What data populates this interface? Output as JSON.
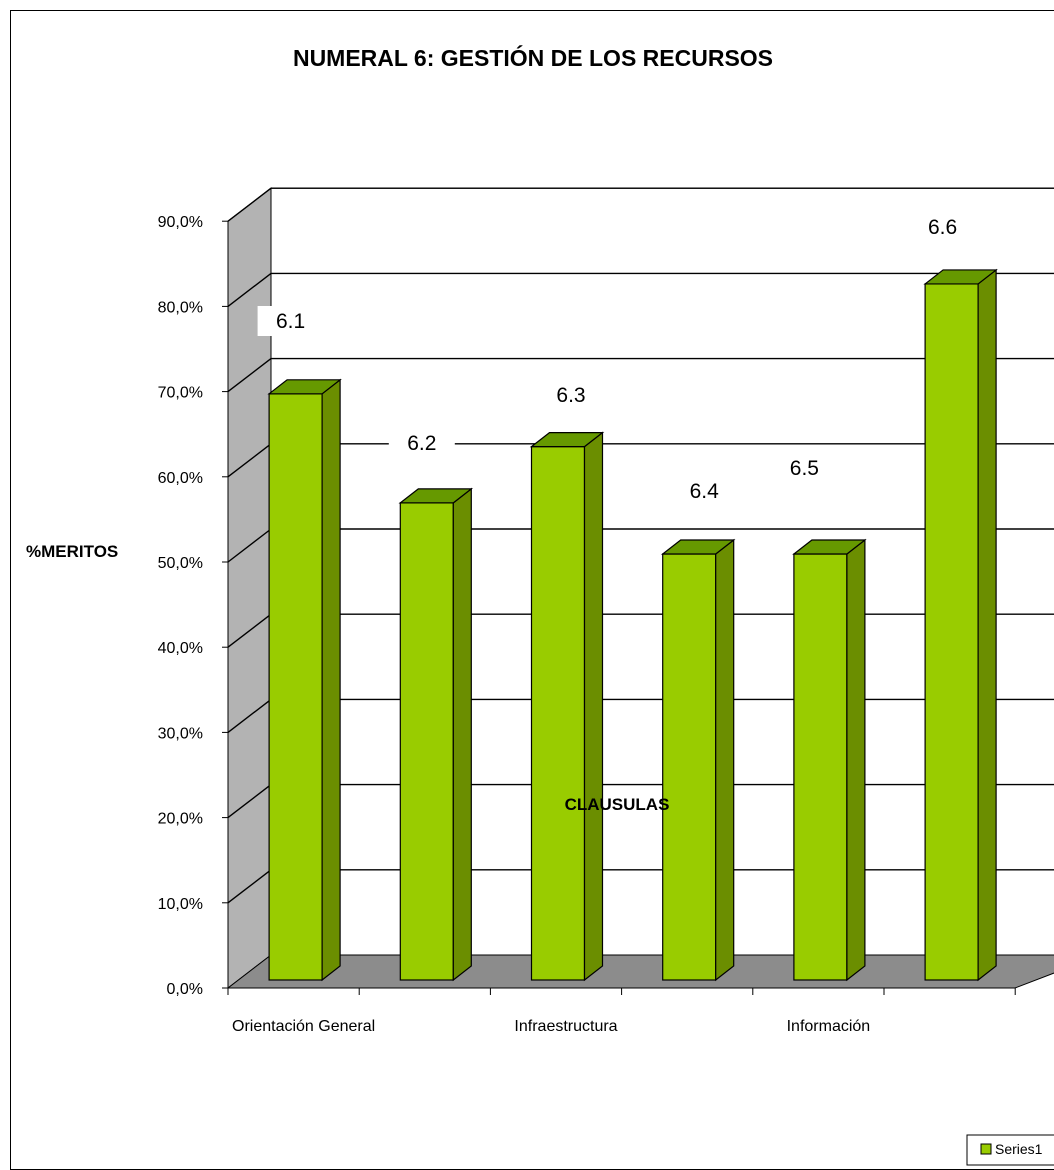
{
  "chart_data": {
    "type": "bar",
    "title": "NUMERAL 6: GESTIÓN DE LOS RECURSOS",
    "xlabel": "CLAUSULAS",
    "ylabel": "%MERITOS",
    "ylim": [
      0,
      90
    ],
    "yticks": [
      "0,0%",
      "10,0%",
      "20,0%",
      "30,0%",
      "40,0%",
      "50,0%",
      "60,0%",
      "70,0%",
      "80,0%",
      "90,0%"
    ],
    "categories": [
      "Orientación General",
      "",
      "Infraestructura",
      "",
      "Información",
      ""
    ],
    "data_labels": [
      "6.1",
      "6.2",
      "6.3",
      "6.4",
      "6.5",
      "6.6"
    ],
    "series": [
      {
        "name": "Series1",
        "values": [
          68.8,
          56.0,
          62.6,
          50.0,
          50.0,
          81.7
        ]
      }
    ],
    "grid": true,
    "legend_position": "bottom-right",
    "colors": {
      "bar_front": "#99cc00",
      "bar_side": "#6b8e00",
      "bar_top": "#669900",
      "floor": "#8c8c8c",
      "wall": "#b3b3b3"
    }
  }
}
